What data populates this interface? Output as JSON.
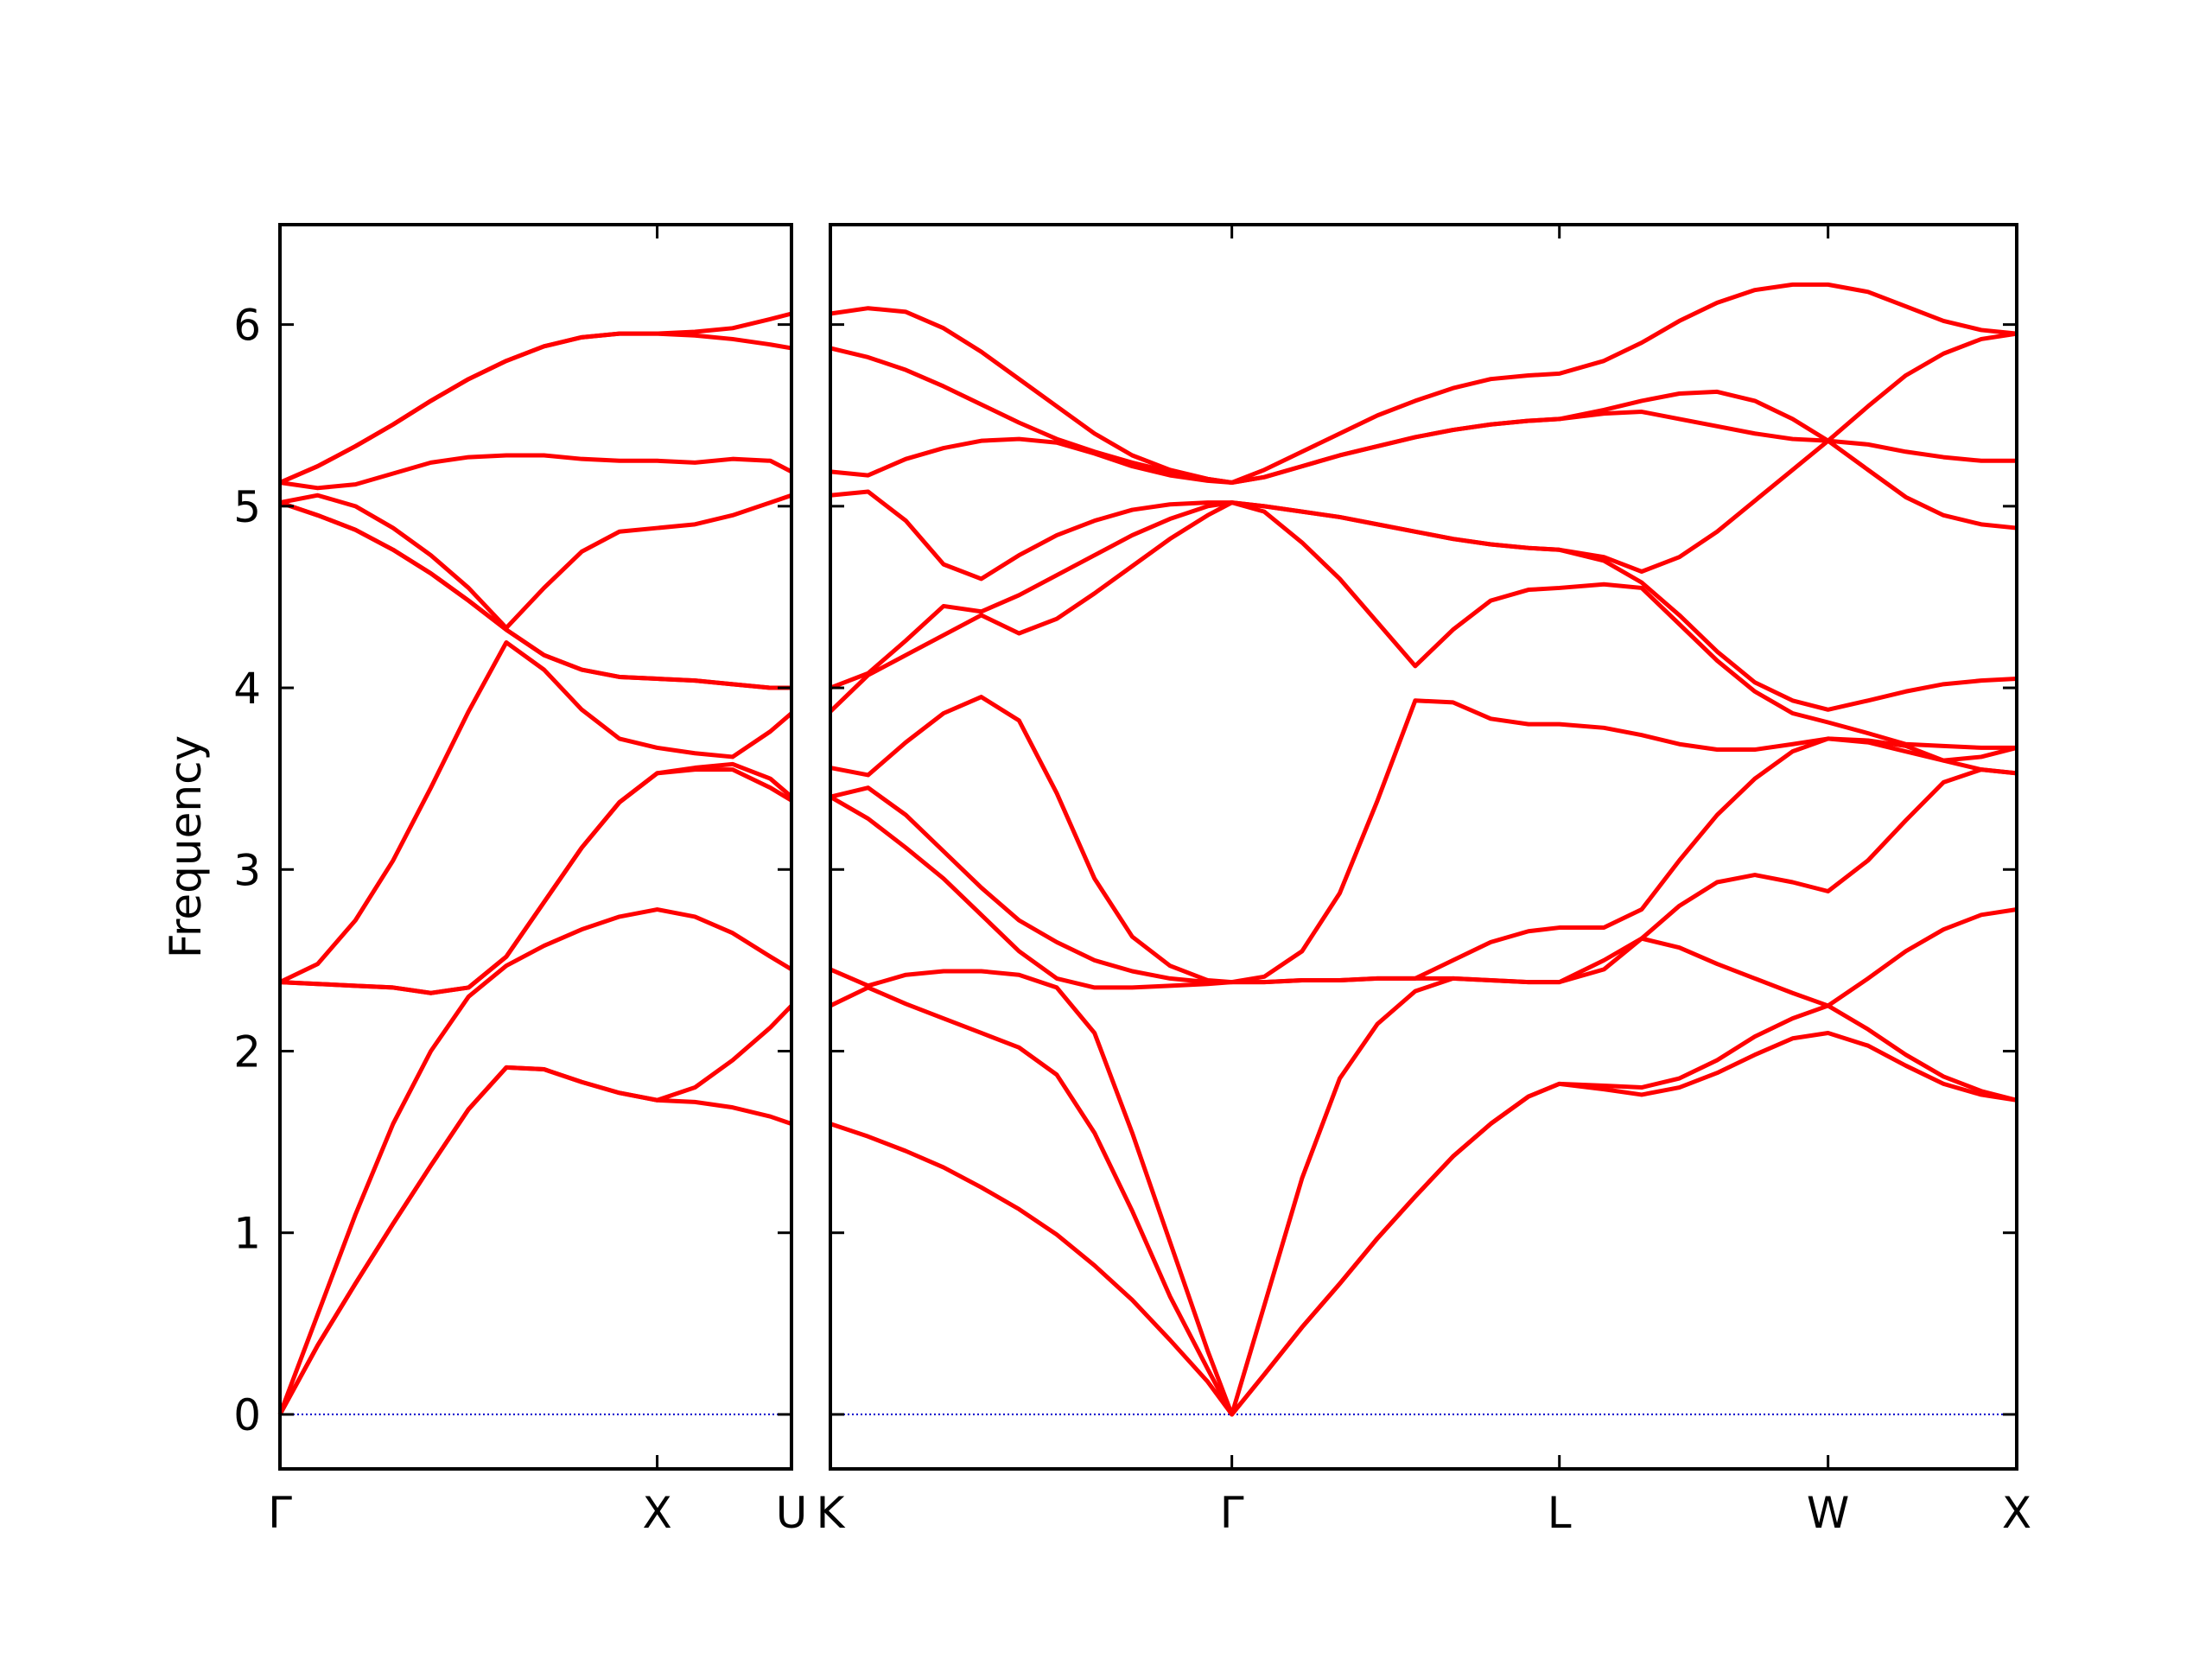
{
  "chart_data": [
    {
      "type": "line",
      "ylabel": "Frequency",
      "color": "#ff0000",
      "hline": 0,
      "hline_color": "#0000cc",
      "ytick_labels": true,
      "xlim": [
        0,
        1.356
      ],
      "ylim": [
        -0.3,
        6.55
      ],
      "xticks": [
        {
          "value": 0,
          "label": "Γ"
        },
        {
          "value": 1,
          "label": "X"
        },
        {
          "value": 1.356,
          "label": "U"
        }
      ],
      "yticks": [
        0,
        1,
        2,
        3,
        4,
        5,
        6
      ],
      "x": [
        0,
        0.1,
        0.2,
        0.3,
        0.4,
        0.5,
        0.6,
        0.7,
        0.8,
        0.9,
        1.0,
        1.1,
        1.2,
        1.3,
        1.356
      ],
      "series": [
        {
          "values": [
            0,
            0.38,
            0.72,
            1.05,
            1.37,
            1.68,
            1.91,
            1.9,
            1.83,
            1.77,
            1.73,
            1.72,
            1.69,
            1.64,
            1.6
          ]
        },
        {
          "values": [
            0,
            0.38,
            0.72,
            1.05,
            1.37,
            1.68,
            1.91,
            1.9,
            1.83,
            1.77,
            1.73,
            1.8,
            1.95,
            2.13,
            2.25
          ]
        },
        {
          "values": [
            0,
            0.55,
            1.1,
            1.6,
            2.0,
            2.3,
            2.47,
            2.58,
            2.67,
            2.74,
            2.78,
            2.74,
            2.65,
            2.52,
            2.45
          ]
        },
        {
          "values": [
            2.38,
            2.37,
            2.36,
            2.35,
            2.32,
            2.35,
            2.52,
            2.82,
            3.12,
            3.37,
            3.53,
            3.55,
            3.55,
            3.45,
            3.38
          ]
        },
        {
          "values": [
            2.38,
            2.37,
            2.36,
            2.35,
            2.32,
            2.35,
            2.52,
            2.82,
            3.12,
            3.37,
            3.53,
            3.56,
            3.58,
            3.5,
            3.4
          ]
        },
        {
          "values": [
            2.38,
            2.48,
            2.72,
            3.05,
            3.45,
            3.87,
            4.25,
            4.1,
            3.88,
            3.72,
            3.67,
            3.64,
            3.62,
            3.76,
            3.86
          ]
        },
        {
          "values": [
            5.02,
            4.95,
            4.87,
            4.76,
            4.63,
            4.48,
            4.32,
            4.18,
            4.1,
            4.06,
            4.05,
            4.04,
            4.02,
            4.0,
            4.0
          ]
        },
        {
          "values": [
            5.02,
            4.95,
            4.87,
            4.76,
            4.63,
            4.48,
            4.32,
            4.18,
            4.1,
            4.06,
            4.05,
            4.04,
            4.02,
            4.0,
            4.0
          ]
        },
        {
          "values": [
            5.02,
            5.06,
            5.0,
            4.88,
            4.73,
            4.55,
            4.33,
            4.55,
            4.75,
            4.86,
            4.88,
            4.9,
            4.95,
            5.02,
            5.06
          ]
        },
        {
          "values": [
            5.13,
            5.1,
            5.12,
            5.18,
            5.24,
            5.27,
            5.28,
            5.28,
            5.26,
            5.25,
            5.25,
            5.24,
            5.26,
            5.25,
            5.19
          ]
        },
        {
          "values": [
            5.13,
            5.22,
            5.33,
            5.45,
            5.58,
            5.7,
            5.8,
            5.88,
            5.93,
            5.95,
            5.95,
            5.94,
            5.92,
            5.89,
            5.87
          ]
        },
        {
          "values": [
            5.13,
            5.22,
            5.33,
            5.45,
            5.58,
            5.7,
            5.8,
            5.88,
            5.93,
            5.95,
            5.95,
            5.96,
            5.98,
            6.03,
            6.06
          ]
        }
      ]
    },
    {
      "type": "line",
      "color": "#ff0000",
      "hline": 0,
      "hline_color": "#0000cc",
      "ytick_labels": false,
      "xlim": [
        0,
        3.144
      ],
      "ylim": [
        -0.3,
        6.55
      ],
      "xticks": [
        {
          "value": 0,
          "label": "K"
        },
        {
          "value": 1.064,
          "label": "Γ"
        },
        {
          "value": 1.932,
          "label": "L"
        },
        {
          "value": 2.644,
          "label": "W"
        },
        {
          "value": 3.144,
          "label": "X"
        }
      ],
      "yticks": [
        0,
        1,
        2,
        3,
        4,
        5,
        6
      ],
      "x": [
        0,
        0.1,
        0.2,
        0.3,
        0.4,
        0.5,
        0.6,
        0.7,
        0.8,
        0.9,
        1.0,
        1.064,
        1.15,
        1.25,
        1.35,
        1.45,
        1.55,
        1.65,
        1.75,
        1.85,
        1.932,
        2.05,
        2.15,
        2.25,
        2.35,
        2.45,
        2.55,
        2.644,
        2.75,
        2.85,
        2.95,
        3.05,
        3.144
      ],
      "series": [
        {
          "values": [
            1.6,
            1.53,
            1.45,
            1.36,
            1.25,
            1.13,
            0.99,
            0.82,
            0.63,
            0.41,
            0.18,
            0,
            0.22,
            0.48,
            0.72,
            0.97,
            1.2,
            1.42,
            1.6,
            1.75,
            1.82,
            1.79,
            1.76,
            1.8,
            1.88,
            1.98,
            2.07,
            2.1,
            2.03,
            1.92,
            1.82,
            1.76,
            1.73
          ]
        },
        {
          "values": [
            2.25,
            2.35,
            2.26,
            2.18,
            2.1,
            2.02,
            1.87,
            1.55,
            1.12,
            0.65,
            0.25,
            0,
            0.22,
            0.48,
            0.72,
            0.97,
            1.2,
            1.42,
            1.6,
            1.75,
            1.82,
            1.81,
            1.8,
            1.85,
            1.95,
            2.08,
            2.18,
            2.25,
            2.12,
            1.98,
            1.86,
            1.78,
            1.73
          ]
        },
        {
          "values": [
            2.45,
            2.36,
            2.42,
            2.44,
            2.44,
            2.42,
            2.35,
            2.1,
            1.55,
            0.95,
            0.35,
            0,
            0.6,
            1.3,
            1.85,
            2.15,
            2.33,
            2.4,
            2.39,
            2.38,
            2.38,
            2.45,
            2.62,
            2.57,
            2.48,
            2.4,
            2.32,
            2.25,
            2.4,
            2.55,
            2.67,
            2.75,
            2.78
          ]
        },
        {
          "values": [
            3.4,
            3.28,
            3.12,
            2.95,
            2.75,
            2.55,
            2.4,
            2.35,
            2.35,
            2.36,
            2.37,
            2.38,
            2.38,
            2.39,
            2.39,
            2.4,
            2.4,
            2.4,
            2.39,
            2.38,
            2.38,
            2.5,
            2.62,
            2.8,
            2.93,
            2.97,
            2.93,
            2.88,
            3.05,
            3.27,
            3.48,
            3.55,
            3.53
          ]
        },
        {
          "values": [
            3.4,
            3.45,
            3.3,
            3.1,
            2.9,
            2.72,
            2.6,
            2.5,
            2.44,
            2.4,
            2.38,
            2.38,
            2.38,
            2.39,
            2.39,
            2.4,
            2.4,
            2.5,
            2.6,
            2.66,
            2.68,
            2.68,
            2.78,
            3.05,
            3.3,
            3.5,
            3.65,
            3.72,
            3.7,
            3.65,
            3.6,
            3.55,
            3.53
          ]
        },
        {
          "values": [
            3.56,
            3.52,
            3.7,
            3.86,
            3.95,
            3.82,
            3.42,
            2.95,
            2.63,
            2.47,
            2.39,
            2.38,
            2.41,
            2.55,
            2.87,
            3.38,
            3.93,
            3.92,
            3.83,
            3.8,
            3.8,
            3.78,
            3.74,
            3.69,
            3.66,
            3.66,
            3.69,
            3.72,
            3.71,
            3.68,
            3.6,
            3.62,
            3.67
          ]
        },
        {
          "values": [
            3.87,
            4.07,
            4.18,
            4.29,
            4.4,
            4.3,
            4.38,
            4.52,
            4.67,
            4.82,
            4.95,
            5.02,
            4.97,
            4.8,
            4.6,
            4.36,
            4.12,
            4.32,
            4.48,
            4.54,
            4.55,
            4.57,
            4.55,
            4.35,
            4.15,
            3.98,
            3.86,
            3.81,
            3.75,
            3.69,
            3.68,
            3.67,
            3.67
          ]
        },
        {
          "values": [
            4.0,
            4.08,
            4.26,
            4.45,
            4.42,
            4.51,
            4.62,
            4.73,
            4.84,
            4.93,
            5.0,
            5.02,
            5.0,
            4.97,
            4.94,
            4.9,
            4.86,
            4.82,
            4.79,
            4.77,
            4.76,
            4.7,
            4.58,
            4.4,
            4.2,
            4.03,
            3.93,
            3.88,
            3.93,
            3.98,
            4.02,
            4.04,
            4.05
          ]
        },
        {
          "values": [
            5.06,
            5.08,
            4.92,
            4.68,
            4.6,
            4.73,
            4.84,
            4.92,
            4.98,
            5.01,
            5.02,
            5.02,
            5.0,
            4.97,
            4.94,
            4.9,
            4.86,
            4.82,
            4.79,
            4.77,
            4.76,
            4.72,
            4.64,
            4.72,
            4.86,
            5.03,
            5.2,
            5.36,
            5.2,
            5.05,
            4.95,
            4.9,
            4.88
          ]
        },
        {
          "values": [
            5.19,
            5.17,
            5.26,
            5.32,
            5.36,
            5.37,
            5.35,
            5.29,
            5.22,
            5.17,
            5.14,
            5.13,
            5.16,
            5.22,
            5.28,
            5.33,
            5.38,
            5.42,
            5.45,
            5.47,
            5.48,
            5.51,
            5.52,
            5.48,
            5.44,
            5.4,
            5.37,
            5.36,
            5.34,
            5.3,
            5.27,
            5.25,
            5.25
          ]
        },
        {
          "values": [
            5.87,
            5.82,
            5.75,
            5.66,
            5.56,
            5.46,
            5.37,
            5.3,
            5.24,
            5.19,
            5.15,
            5.13,
            5.16,
            5.22,
            5.28,
            5.33,
            5.38,
            5.42,
            5.45,
            5.47,
            5.48,
            5.53,
            5.58,
            5.62,
            5.63,
            5.58,
            5.48,
            5.36,
            5.55,
            5.72,
            5.84,
            5.92,
            5.95
          ]
        },
        {
          "values": [
            6.06,
            6.09,
            6.07,
            5.98,
            5.85,
            5.7,
            5.55,
            5.4,
            5.28,
            5.2,
            5.15,
            5.13,
            5.2,
            5.3,
            5.4,
            5.5,
            5.58,
            5.65,
            5.7,
            5.72,
            5.73,
            5.8,
            5.9,
            6.02,
            6.12,
            6.19,
            6.22,
            6.22,
            6.18,
            6.1,
            6.02,
            5.97,
            5.95
          ]
        }
      ]
    }
  ]
}
